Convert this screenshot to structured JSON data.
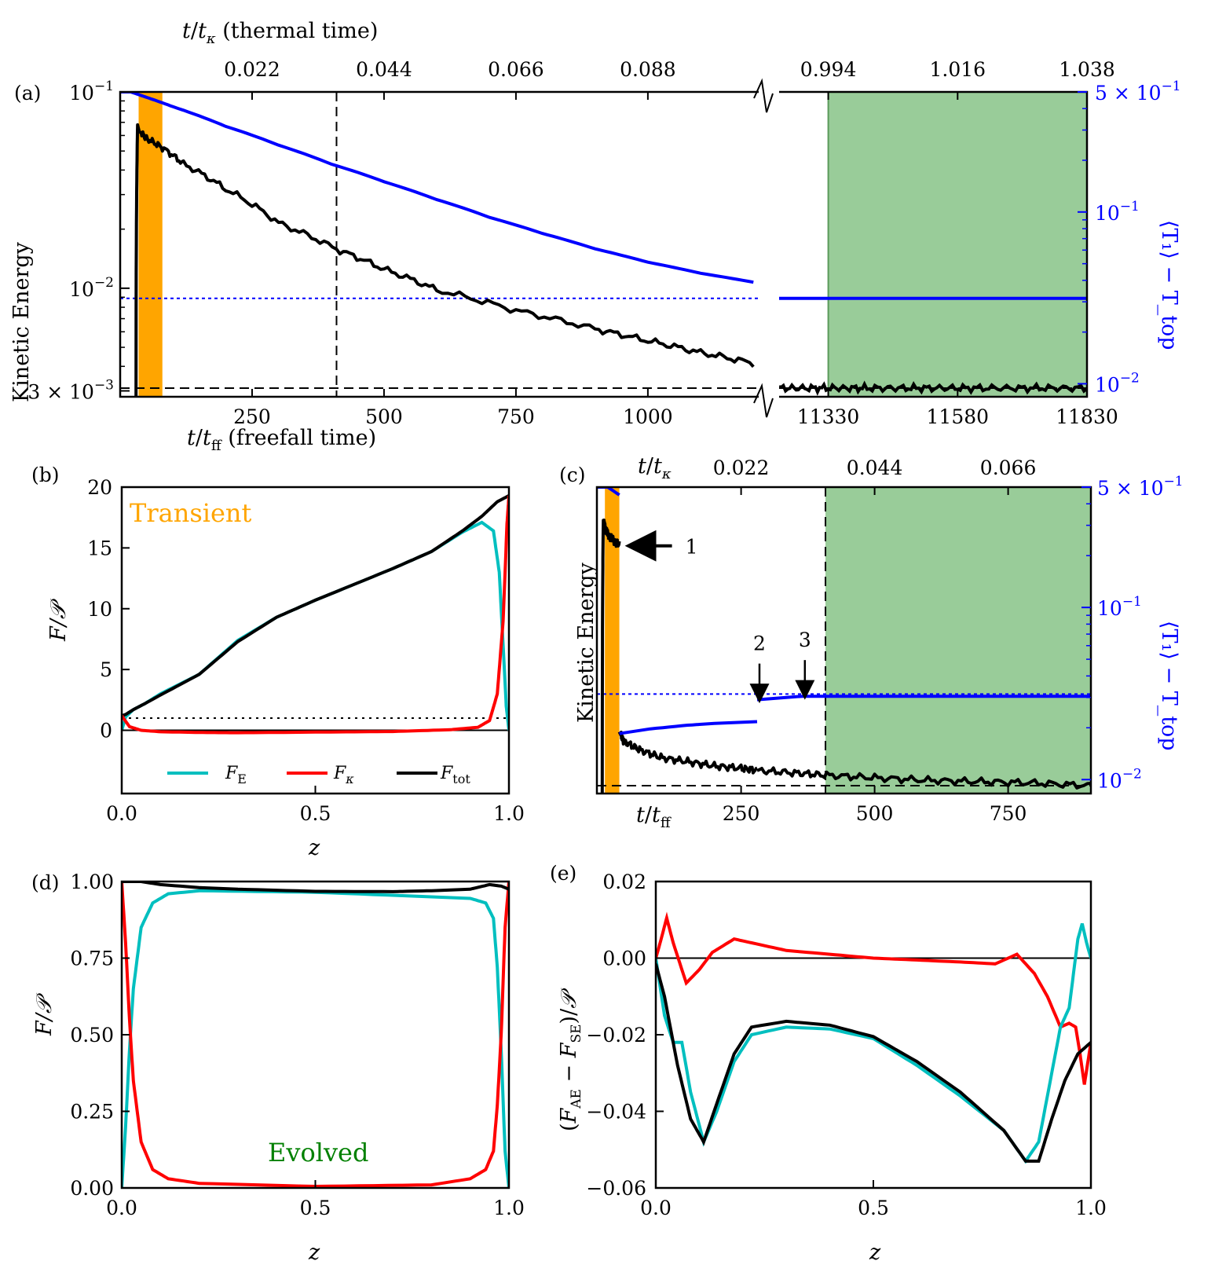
{
  "colors": {
    "kinetic": "#000000",
    "temperature": "#0000ff",
    "F_E": "#00bfbf",
    "F_kappa": "#ff0000",
    "F_tot": "#000000",
    "transient_band": "#ffa500",
    "evolved_band": "#99cc99",
    "evolved_text": "#008000",
    "transient_text": "#ffa500"
  },
  "chart_data": [
    {
      "panel": "(a)",
      "type": "line",
      "title": "",
      "xlabel": "t/t_ff (freefall time)",
      "xlabel_top": "t/t_κ (thermal time)",
      "ylabel": "Kinetic Energy",
      "ylabel_right": "⟨T₁⟩ − T_top",
      "left_segment": {
        "xlim": [
          0,
          1210
        ],
        "xticks": [
          "250",
          "500",
          "750",
          "1000"
        ],
        "xtick_values": [
          250,
          500,
          750,
          1000
        ],
        "top_ticks": [
          "0.022",
          "0.044",
          "0.066",
          "0.088"
        ],
        "top_tick_values": [
          250,
          500,
          750,
          1000
        ]
      },
      "right_segment": {
        "xlim": [
          11235,
          11830
        ],
        "xticks": [
          "11330",
          "11580",
          "11830"
        ],
        "xtick_values": [
          11330,
          11580,
          11830
        ],
        "top_ticks": [
          "0.994",
          "1.016",
          "1.038"
        ],
        "top_tick_values": [
          11330,
          11580,
          11830
        ]
      },
      "yticks_left": [
        "10^{-1}",
        "10^{-2}",
        "3 × 10^{-3}"
      ],
      "yticks_left_values": [
        0.1,
        0.01,
        0.003
      ],
      "ylim_left": [
        0.0028,
        0.1
      ],
      "yticks_right": [
        "5 × 10^{-1}",
        "10^{-1}",
        "10^{-2}"
      ],
      "yticks_right_values": [
        0.5,
        0.1,
        0.01
      ],
      "ylim_right": [
        0.0084,
        0.5
      ],
      "transient_band": [
        35,
        80
      ],
      "evolved_band": [
        11330,
        11830
      ],
      "dashed_vline_x": 410,
      "ke_evolved_level": 0.0031,
      "temp_evolved_level": 0.0314,
      "series": [
        {
          "name": "Kinetic Energy",
          "axis": "left",
          "x": [
            30,
            33,
            36,
            50,
            80,
            120,
            200,
            300,
            410,
            500,
            600,
            750,
            900,
            1000,
            1100,
            1200
          ],
          "values": [
            0.0028,
            0.068,
            0.063,
            0.058,
            0.052,
            0.043,
            0.032,
            0.0215,
            0.0158,
            0.0125,
            0.0098,
            0.0077,
            0.0062,
            0.0054,
            0.0047,
            0.00415
          ]
        },
        {
          "name": "Kinetic Energy (evolved)",
          "axis": "left",
          "x": [
            11235,
            11400,
            11600,
            11830
          ],
          "values": [
            0.0031,
            0.0031,
            0.0031,
            0.0031
          ]
        },
        {
          "name": "T1 - Ttop",
          "axis": "right",
          "x": [
            0,
            20,
            50,
            100,
            200,
            300,
            400,
            500,
            600,
            700,
            800,
            900,
            1000,
            1100,
            1200
          ],
          "values": [
            0.5,
            0.5,
            0.465,
            0.41,
            0.315,
            0.245,
            0.19,
            0.15,
            0.118,
            0.093,
            0.075,
            0.061,
            0.051,
            0.044,
            0.039
          ]
        },
        {
          "name": "T1 - Ttop (evolved)",
          "axis": "right",
          "x": [
            11235,
            11830
          ],
          "values": [
            0.0314,
            0.0314
          ]
        }
      ]
    },
    {
      "panel": "(b)",
      "type": "line",
      "xlabel": "z",
      "ylabel": "F/𝒫",
      "xlim": [
        0,
        1
      ],
      "ylim": [
        -5.2,
        20
      ],
      "xticks": [
        "0.0",
        "0.5",
        "1.0"
      ],
      "xtick_values": [
        0,
        0.5,
        1
      ],
      "yticks": [
        "0",
        "5",
        "10",
        "15",
        "20"
      ],
      "ytick_values": [
        0,
        5,
        10,
        15,
        20
      ],
      "annotation": "Transient",
      "legend": [
        "F_E",
        "F_κ",
        "F_tot"
      ],
      "reference_lines": {
        "zero": 0,
        "dotted": 1
      },
      "series": [
        {
          "name": "F_E",
          "x": [
            0,
            0.01,
            0.03,
            0.06,
            0.1,
            0.2,
            0.3,
            0.4,
            0.5,
            0.6,
            0.7,
            0.8,
            0.88,
            0.93,
            0.96,
            0.975,
            0.985,
            0.993,
            1.0
          ],
          "values": [
            0,
            1.1,
            1.7,
            2.2,
            3.0,
            4.6,
            7.4,
            9.3,
            10.7,
            12.0,
            13.3,
            14.7,
            16.3,
            17.1,
            16.4,
            13.0,
            7.0,
            2.0,
            0
          ]
        },
        {
          "name": "F_κ",
          "x": [
            0,
            0.02,
            0.05,
            0.1,
            0.2,
            0.3,
            0.5,
            0.7,
            0.85,
            0.92,
            0.95,
            0.97,
            0.985,
            0.995,
            1.0
          ],
          "values": [
            1.2,
            0.3,
            0.0,
            -0.12,
            -0.18,
            -0.2,
            -0.15,
            -0.1,
            0.05,
            0.25,
            0.8,
            3.0,
            9.0,
            17.0,
            19.3
          ]
        },
        {
          "name": "F_tot",
          "x": [
            0,
            0.01,
            0.03,
            0.06,
            0.1,
            0.2,
            0.3,
            0.4,
            0.5,
            0.6,
            0.7,
            0.8,
            0.88,
            0.93,
            0.97,
            1.0
          ],
          "values": [
            1.2,
            1.3,
            1.7,
            2.2,
            2.9,
            4.6,
            7.3,
            9.3,
            10.7,
            12.0,
            13.3,
            14.7,
            16.4,
            17.6,
            18.8,
            19.3
          ]
        }
      ]
    },
    {
      "panel": "(c)",
      "type": "line",
      "xlabel": "t/t_ff",
      "xlabel_top": "t/t_κ",
      "ylabel": "Kinetic Energy",
      "ylabel_right": "⟨T₁⟩ − T_top",
      "xlim": [
        -20,
        905
      ],
      "xticks": [
        "250",
        "500",
        "750"
      ],
      "xtick_values": [
        250,
        500,
        750
      ],
      "top_ticks": [
        "0.022",
        "0.044",
        "0.066"
      ],
      "top_tick_values": [
        250,
        500,
        750
      ],
      "ylim_right": [
        0.0083,
        0.5
      ],
      "yticks_right": [
        "5 × 10^{-1}",
        "10^{-1}",
        "10^{-2}"
      ],
      "yticks_right_values": [
        0.5,
        0.1,
        0.01
      ],
      "ylim_left": [
        0.00283,
        0.1
      ],
      "transient_band": [
        -5,
        22
      ],
      "evolved_band": [
        408,
        905
      ],
      "dashed_vline_x": 408,
      "ke_evolved_level": 0.0031,
      "temp_evolved_level": 0.0314,
      "arrows": [
        {
          "label": "1",
          "x": 50
        },
        {
          "label": "2",
          "x": 280
        },
        {
          "label": "3",
          "x": 365
        }
      ],
      "series": [
        {
          "name": "Kinetic Energy (transient)",
          "axis": "left",
          "x": [
            -10,
            -8,
            -5,
            0,
            10,
            22
          ],
          "values": [
            0.0028,
            0.068,
            0.063,
            0.058,
            0.054,
            0.051
          ]
        },
        {
          "name": "Kinetic Energy (segment 2)",
          "axis": "left",
          "x": [
            22,
            30,
            60,
            100,
            150,
            200,
            250,
            280
          ],
          "values": [
            0.0058,
            0.0052,
            0.0047,
            0.0043,
            0.0041,
            0.0039,
            0.0038,
            0.0037
          ]
        },
        {
          "name": "Kinetic Energy (segment 3)",
          "axis": "left",
          "x": [
            280,
            350,
            410,
            500,
            600,
            700,
            800,
            905
          ],
          "values": [
            0.0037,
            0.0036,
            0.0035,
            0.0034,
            0.0033,
            0.00325,
            0.0032,
            0.0031
          ]
        },
        {
          "name": "T1 - Ttop (transient)",
          "axis": "right",
          "x": [
            -20,
            0,
            22
          ],
          "values": [
            0.5,
            0.5,
            0.45
          ]
        },
        {
          "name": "T1 - Ttop (segment 2)",
          "axis": "right",
          "x": [
            22,
            80,
            150,
            200,
            280
          ],
          "values": [
            0.0185,
            0.0197,
            0.0207,
            0.0212,
            0.0217
          ]
        },
        {
          "name": "T1 - Ttop (segment 3)",
          "axis": "right",
          "x": [
            280,
            365,
            905
          ],
          "values": [
            0.0291,
            0.0305,
            0.0305
          ]
        }
      ]
    },
    {
      "panel": "(d)",
      "type": "line",
      "xlabel": "z",
      "ylabel": "F/𝒫",
      "xlim": [
        0,
        1
      ],
      "ylim": [
        0,
        1.0
      ],
      "xticks": [
        "0.0",
        "0.5",
        "1.0"
      ],
      "xtick_values": [
        0,
        0.5,
        1
      ],
      "yticks": [
        "0.00",
        "0.25",
        "0.50",
        "0.75",
        "1.00"
      ],
      "ytick_values": [
        0,
        0.25,
        0.5,
        0.75,
        1.0
      ],
      "annotation": "Evolved",
      "series": [
        {
          "name": "F_E",
          "x": [
            0,
            0.01,
            0.02,
            0.03,
            0.05,
            0.08,
            0.12,
            0.2,
            0.5,
            0.8,
            0.9,
            0.94,
            0.96,
            0.97,
            0.98,
            0.99,
            1.0
          ],
          "values": [
            0,
            0.2,
            0.45,
            0.65,
            0.85,
            0.93,
            0.96,
            0.97,
            0.965,
            0.95,
            0.945,
            0.93,
            0.88,
            0.72,
            0.45,
            0.12,
            0
          ]
        },
        {
          "name": "F_κ",
          "x": [
            0,
            0.01,
            0.02,
            0.03,
            0.05,
            0.08,
            0.12,
            0.2,
            0.5,
            0.8,
            0.9,
            0.94,
            0.96,
            0.97,
            0.98,
            0.99,
            1.0
          ],
          "values": [
            1.0,
            0.8,
            0.55,
            0.35,
            0.15,
            0.06,
            0.03,
            0.015,
            0.005,
            0.01,
            0.03,
            0.06,
            0.12,
            0.27,
            0.5,
            0.85,
            1.0
          ]
        },
        {
          "name": "F_tot",
          "x": [
            0,
            0.05,
            0.1,
            0.2,
            0.3,
            0.5,
            0.7,
            0.8,
            0.9,
            0.95,
            0.98,
            1.0
          ],
          "values": [
            1.0,
            1.0,
            0.99,
            0.98,
            0.975,
            0.968,
            0.967,
            0.97,
            0.975,
            0.99,
            0.985,
            0.975
          ]
        }
      ]
    },
    {
      "panel": "(e)",
      "type": "line",
      "xlabel": "z",
      "ylabel": "(F_AE − F_SE)/𝒫",
      "xlim": [
        0,
        1
      ],
      "ylim": [
        -0.06,
        0.02
      ],
      "xticks": [
        "0.0",
        "0.5",
        "1.0"
      ],
      "xtick_values": [
        0,
        0.5,
        1
      ],
      "yticks": [
        "0.02",
        "0.00",
        "−0.02",
        "−0.04",
        "−0.06"
      ],
      "ytick_values": [
        0.02,
        0.0,
        -0.02,
        -0.04,
        -0.06
      ],
      "series": [
        {
          "name": "F_κ",
          "x": [
            0,
            0.01,
            0.025,
            0.04,
            0.07,
            0.1,
            0.13,
            0.18,
            0.22,
            0.3,
            0.4,
            0.5,
            0.6,
            0.7,
            0.78,
            0.83,
            0.87,
            0.9,
            0.93,
            0.95,
            0.965,
            0.975,
            0.985,
            1.0
          ],
          "values": [
            0,
            0.004,
            0.0105,
            0.004,
            -0.0065,
            -0.003,
            0.0015,
            0.005,
            0.004,
            0.002,
            0.001,
            0.0,
            -0.0005,
            -0.001,
            -0.0015,
            0.001,
            -0.004,
            -0.01,
            -0.018,
            -0.017,
            -0.018,
            -0.025,
            -0.033,
            -0.022
          ]
        },
        {
          "name": "F_E",
          "x": [
            0,
            0.02,
            0.04,
            0.06,
            0.08,
            0.11,
            0.14,
            0.18,
            0.22,
            0.3,
            0.4,
            0.5,
            0.6,
            0.7,
            0.8,
            0.85,
            0.88,
            0.91,
            0.93,
            0.95,
            0.97,
            0.98,
            0.99,
            1.0
          ],
          "values": [
            0,
            -0.015,
            -0.022,
            -0.022,
            -0.035,
            -0.048,
            -0.04,
            -0.027,
            -0.02,
            -0.018,
            -0.0185,
            -0.021,
            -0.028,
            -0.036,
            -0.045,
            -0.053,
            -0.048,
            -0.03,
            -0.018,
            -0.013,
            0.005,
            0.009,
            0.004,
            0.0
          ]
        },
        {
          "name": "F_tot",
          "x": [
            0,
            0.02,
            0.05,
            0.08,
            0.11,
            0.14,
            0.18,
            0.22,
            0.3,
            0.4,
            0.5,
            0.6,
            0.7,
            0.8,
            0.85,
            0.88,
            0.91,
            0.94,
            0.97,
            1.0
          ],
          "values": [
            -0.0015,
            -0.01,
            -0.028,
            -0.042,
            -0.048,
            -0.038,
            -0.025,
            -0.018,
            -0.0165,
            -0.0175,
            -0.0205,
            -0.027,
            -0.035,
            -0.045,
            -0.053,
            -0.053,
            -0.042,
            -0.032,
            -0.025,
            -0.022
          ]
        }
      ]
    }
  ],
  "text": {
    "a_label": "(a)",
    "b_label": "(b)",
    "c_label": "(c)",
    "d_label": "(d)",
    "e_label": "(e)",
    "a_top_xlabel": "(thermal time)",
    "a_bot_xlabel": "(freefall time)",
    "a_ylabel": "Kinetic Energy",
    "c_ylabel": "Kinetic Energy",
    "b_ylabel": "F/𝒫",
    "d_ylabel": "F/𝒫",
    "b_xlabel": "z",
    "d_xlabel": "z",
    "e_xlabel": "z",
    "b_ann": "Transient",
    "d_ann": "Evolved",
    "leg_FE": "F",
    "leg_FE_sub": "E",
    "leg_Fk": "F",
    "leg_Fk_sub": "κ",
    "leg_Ftot": "F",
    "leg_Ftot_sub": "tot",
    "c_arrow1": "1",
    "c_arrow2": "2",
    "c_arrow3": "3"
  }
}
